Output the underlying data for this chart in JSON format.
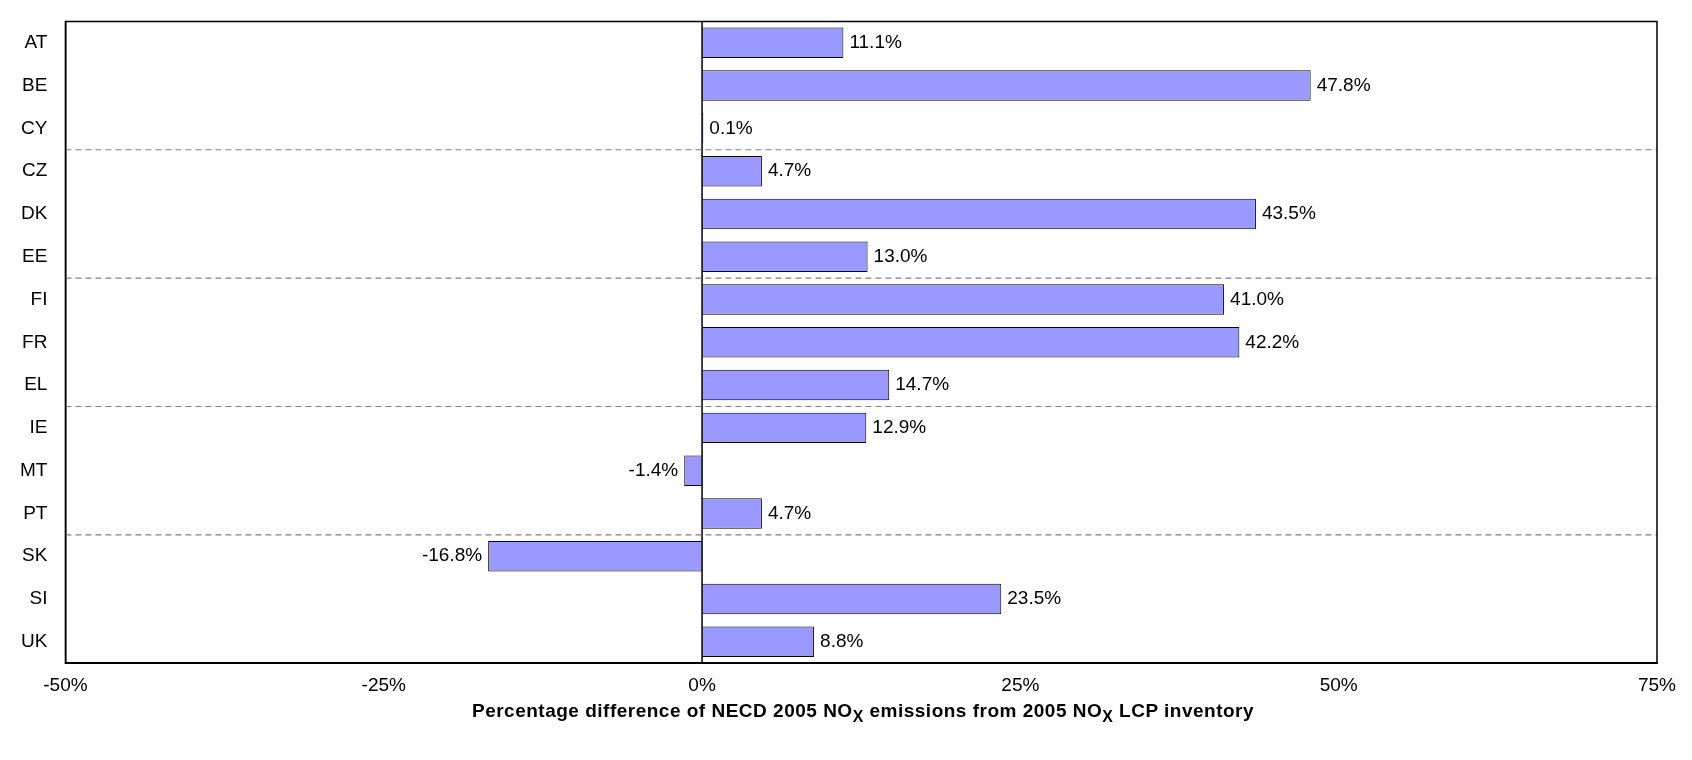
{
  "chart_data": {
    "type": "bar",
    "orientation": "horizontal",
    "xlabel": "Percentage difference of NECD 2005 NO$_{X}$ emissions from 2005 NO$_{X}$ LCP inventory",
    "categories": [
      "AT",
      "BE",
      "CY",
      "CZ",
      "DK",
      "EE",
      "FI",
      "FR",
      "EL",
      "IE",
      "MT",
      "PT",
      "SK",
      "SI",
      "UK"
    ],
    "values": [
      11.1,
      47.8,
      0.1,
      4.7,
      43.5,
      13.0,
      41.0,
      42.2,
      14.7,
      12.9,
      -1.4,
      4.7,
      -16.8,
      23.5,
      8.8
    ],
    "value_labels": [
      "11.1%",
      "47.8%",
      "0.1%",
      "4.7%",
      "43.5%",
      "13.0%",
      "41.0%",
      "42.2%",
      "14.7%",
      "12.9%",
      "-1.4%",
      "4.7%",
      "-16.8%",
      "23.5%",
      "8.8%"
    ],
    "color": "#9999ff",
    "xlim": [
      -50,
      75
    ],
    "xticks": [
      {
        "value": -50,
        "label": "-50%"
      },
      {
        "value": -25,
        "label": "-25%"
      },
      {
        "value": 0,
        "label": "0%"
      },
      {
        "value": 25,
        "label": "25%"
      },
      {
        "value": 50,
        "label": "50%"
      },
      {
        "value": 75,
        "label": "75%"
      }
    ],
    "grid": false,
    "legend": false
  }
}
